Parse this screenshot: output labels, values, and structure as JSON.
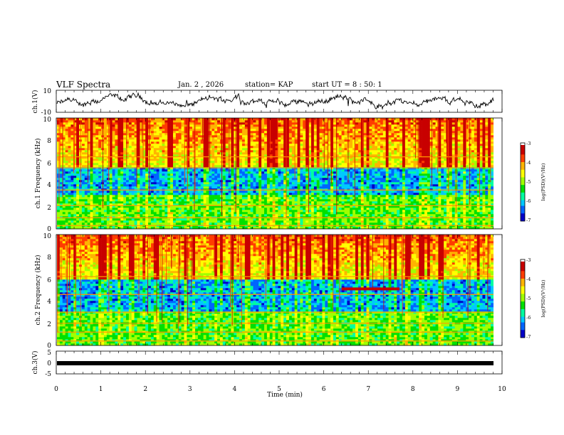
{
  "header": {
    "title": "VLF Spectra",
    "date": "Jan. 2 , 2026",
    "station": "station= KAP",
    "start": "start UT = 8 : 50: 1"
  },
  "colors": {
    "spectrum": [
      "#ffffff",
      "#0000c8",
      "#0064ff",
      "#00c8ff",
      "#00ffa0",
      "#00e000",
      "#a0ff00",
      "#ffff00",
      "#ffb400",
      "#ff3c00",
      "#c80000"
    ],
    "trace": "#000000",
    "frame": "#000000"
  },
  "chart_data": [
    {
      "type": "line",
      "id": "ch1-waveform",
      "ylabel": "ch.1(V)",
      "ylim": [
        -10,
        10
      ],
      "yticks": [
        "10",
        "-10"
      ],
      "xlim": [
        0,
        10
      ],
      "description_series": "continuous noisy voltage waveform",
      "y_mean": 0,
      "y_amplitude_approx": 6
    },
    {
      "type": "heatmap",
      "id": "ch1-spectrogram",
      "ylabel": "ch.1 Frequency (kHz)",
      "ylim": [
        0,
        10
      ],
      "yticks": [
        "0",
        "2",
        "4",
        "6",
        "8",
        "10"
      ],
      "xlim": [
        0,
        9.8
      ],
      "colorbar": {
        "label": "log(PSD)(V²/Hz)",
        "range": [
          -7,
          -3
        ],
        "ticks": [
          "-3",
          "-4",
          "-5",
          "-6",
          "-7"
        ]
      },
      "bands_khz": {
        "quiet_blue": [
          3.0,
          5.5
        ],
        "tone_lines": [
          0.3,
          1.0,
          2.1,
          3.5,
          5.5,
          6.5
        ]
      }
    },
    {
      "type": "heatmap",
      "id": "ch2-spectrogram",
      "ylabel": "ch.2 Frequency (kHz)",
      "ylim": [
        0,
        10
      ],
      "yticks": [
        "0",
        "2",
        "4",
        "6",
        "8",
        "10"
      ],
      "xlim": [
        0,
        9.8
      ],
      "colorbar": {
        "label": "log(PSD)(V²/Hz)",
        "range": [
          -7,
          -3
        ],
        "ticks": [
          "-3",
          "-4",
          "-5",
          "-6",
          "-7"
        ]
      },
      "bands_khz": {
        "quiet_blue": [
          3.0,
          6.0
        ],
        "tone_lines": [
          0.4,
          1.2,
          2.0,
          3.0,
          4.6,
          6.2
        ]
      },
      "event": {
        "t_start_min": 6.4,
        "t_end_min": 7.7,
        "freq_khz": 5.1,
        "description": "narrowband emission"
      }
    },
    {
      "type": "line",
      "id": "ch3-waveform",
      "ylabel": "ch.3(V)",
      "ylim": [
        -5,
        5
      ],
      "yticks": [
        "5",
        "0",
        "-5"
      ],
      "xlim": [
        0,
        10
      ],
      "y_mean": -1.0,
      "y_amplitude_approx": 0.5
    }
  ],
  "xaxis": {
    "label": "Time (min)",
    "ticks": [
      "0",
      "1",
      "2",
      "3",
      "4",
      "5",
      "6",
      "7",
      "8",
      "9",
      "10"
    ],
    "xlim": [
      0,
      10
    ]
  }
}
